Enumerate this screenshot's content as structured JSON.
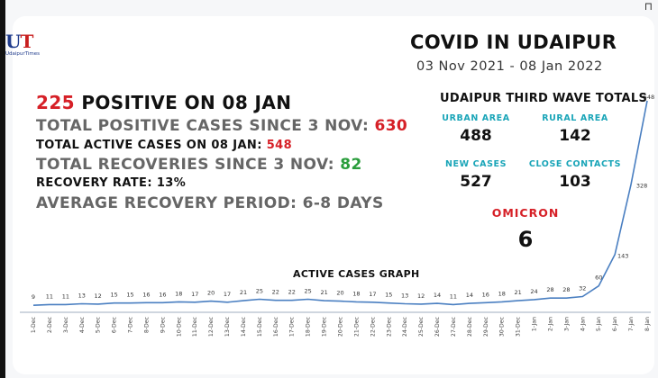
{
  "header": {
    "top_glyph": "⊓",
    "logo_u": "U",
    "logo_t": "T",
    "logo_sub": "UdaipurTimes",
    "title": "COVID IN UDAIPUR",
    "date_range": "03 Nov 2021 - 08 Jan 2022"
  },
  "stats": {
    "positive_value": "225",
    "positive_label": " POSITIVE ON 08 JAN",
    "total_positive_label": "TOTAL POSITIVE CASES SINCE 3 NOV: ",
    "total_positive_value": "630",
    "active_label": "TOTAL ACTIVE CASES ON 08 JAN: ",
    "active_value": "548",
    "recoveries_label": "TOTAL RECOVERIES SINCE 3 NOV: ",
    "recoveries_value": "82",
    "recovery_rate": "RECOVERY RATE: 13%",
    "avg_recovery": "AVERAGE RECOVERY PERIOD: 6-8 DAYS"
  },
  "third_wave": {
    "heading": "UDAIPUR THIRD WAVE TOTALS",
    "urban_label": "URBAN AREA",
    "urban_value": "488",
    "rural_label": "RURAL AREA",
    "rural_value": "142",
    "new_label": "NEW CASES",
    "new_value": "527",
    "contacts_label": "CLOSE CONTACTS",
    "contacts_value": "103",
    "omicron_label": "OMICRON",
    "omicron_value": "6"
  },
  "colors": {
    "accent_red": "#d62027",
    "accent_green": "#2a9d3c",
    "teal_label": "#1aa5b8",
    "line": "#4a7fc1"
  },
  "chart_data": {
    "type": "line",
    "title": "ACTIVE CASES GRAPH",
    "categories": [
      "1-Dec",
      "2-Dec",
      "3-Dec",
      "4-Dec",
      "5-Dec",
      "6-Dec",
      "7-Dec",
      "8-Dec",
      "9-Dec",
      "10-Dec",
      "11-Dec",
      "12-Dec",
      "13-Dec",
      "14-Dec",
      "15-Dec",
      "16-Dec",
      "17-Dec",
      "18-Dec",
      "19-Dec",
      "20-Dec",
      "21-Dec",
      "22-Dec",
      "23-Dec",
      "24-Dec",
      "25-Dec",
      "26-Dec",
      "27-Dec",
      "28-Dec",
      "29-Dec",
      "30-Dec",
      "31-Dec",
      "1-Jan",
      "2-Jan",
      "3-Jan",
      "4-Jan",
      "5-Jan",
      "6-Jan",
      "7-Jan",
      "8-Jan"
    ],
    "values": [
      9,
      11,
      11,
      13,
      12,
      15,
      15,
      16,
      16,
      18,
      17,
      20,
      17,
      21,
      25,
      22,
      22,
      25,
      21,
      20,
      18,
      17,
      15,
      13,
      12,
      14,
      11,
      14,
      16,
      18,
      21,
      24,
      28,
      28,
      32,
      60,
      143,
      328,
      548
    ],
    "data_labels": true,
    "grid": false,
    "legend": "none"
  }
}
